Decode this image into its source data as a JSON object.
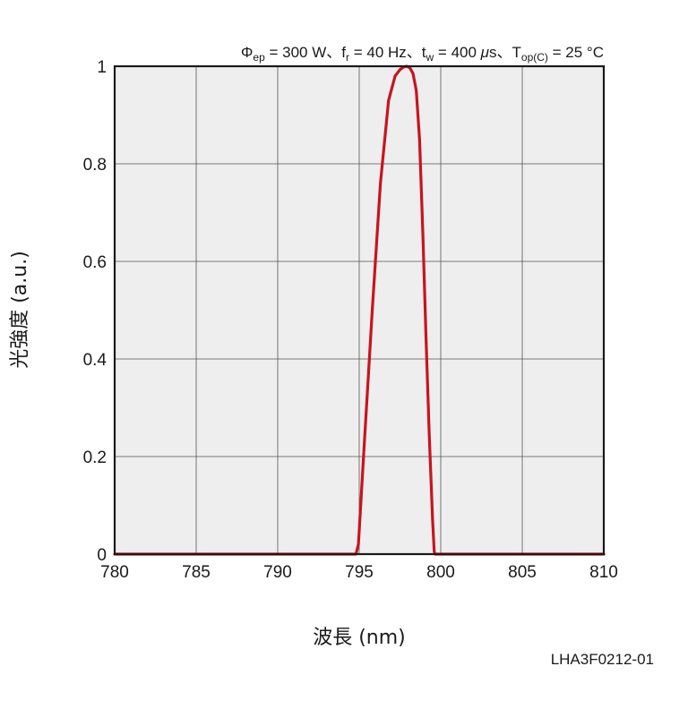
{
  "chart_data": {
    "type": "line",
    "condition": {
      "phi_sym": "Φ",
      "phi_sub": "ep",
      "phi_val": " = 300 W、",
      "f_sym": "f",
      "f_sub": "r",
      "f_val": " = 40 Hz、",
      "t_sym": "t",
      "t_sub": "w",
      "t_val": " = 400 ",
      "mu": "μ",
      "s_sep": "s、",
      "T_sym": "T",
      "T_sub": "op(C)",
      "T_val": " = 25 °C"
    },
    "xlabel": "波長 (nm)",
    "ylabel": "光強度 (a.u.)",
    "xlim": [
      780,
      810
    ],
    "ylim": [
      0,
      1
    ],
    "x_ticks": [
      "780",
      "785",
      "790",
      "795",
      "800",
      "805",
      "810"
    ],
    "y_ticks": [
      "0",
      "0.2",
      "0.4",
      "0.6",
      "0.8",
      "1"
    ],
    "grid": true,
    "series": [
      {
        "color": "#c8141e",
        "x": [
          780,
          794.8,
          794.95,
          795.3,
          795.8,
          796.3,
          796.8,
          797.2,
          797.5,
          797.7,
          797.9,
          798.1,
          798.3,
          798.5,
          798.7,
          798.9,
          799.1,
          799.3,
          799.5,
          799.6,
          799.65,
          810
        ],
        "y": [
          0,
          0,
          0.02,
          0.22,
          0.5,
          0.76,
          0.93,
          0.98,
          0.993,
          0.998,
          1.0,
          0.997,
          0.985,
          0.95,
          0.85,
          0.66,
          0.44,
          0.24,
          0.07,
          0.005,
          0,
          0
        ]
      }
    ]
  },
  "figure_code": "LHA3F0212-01"
}
